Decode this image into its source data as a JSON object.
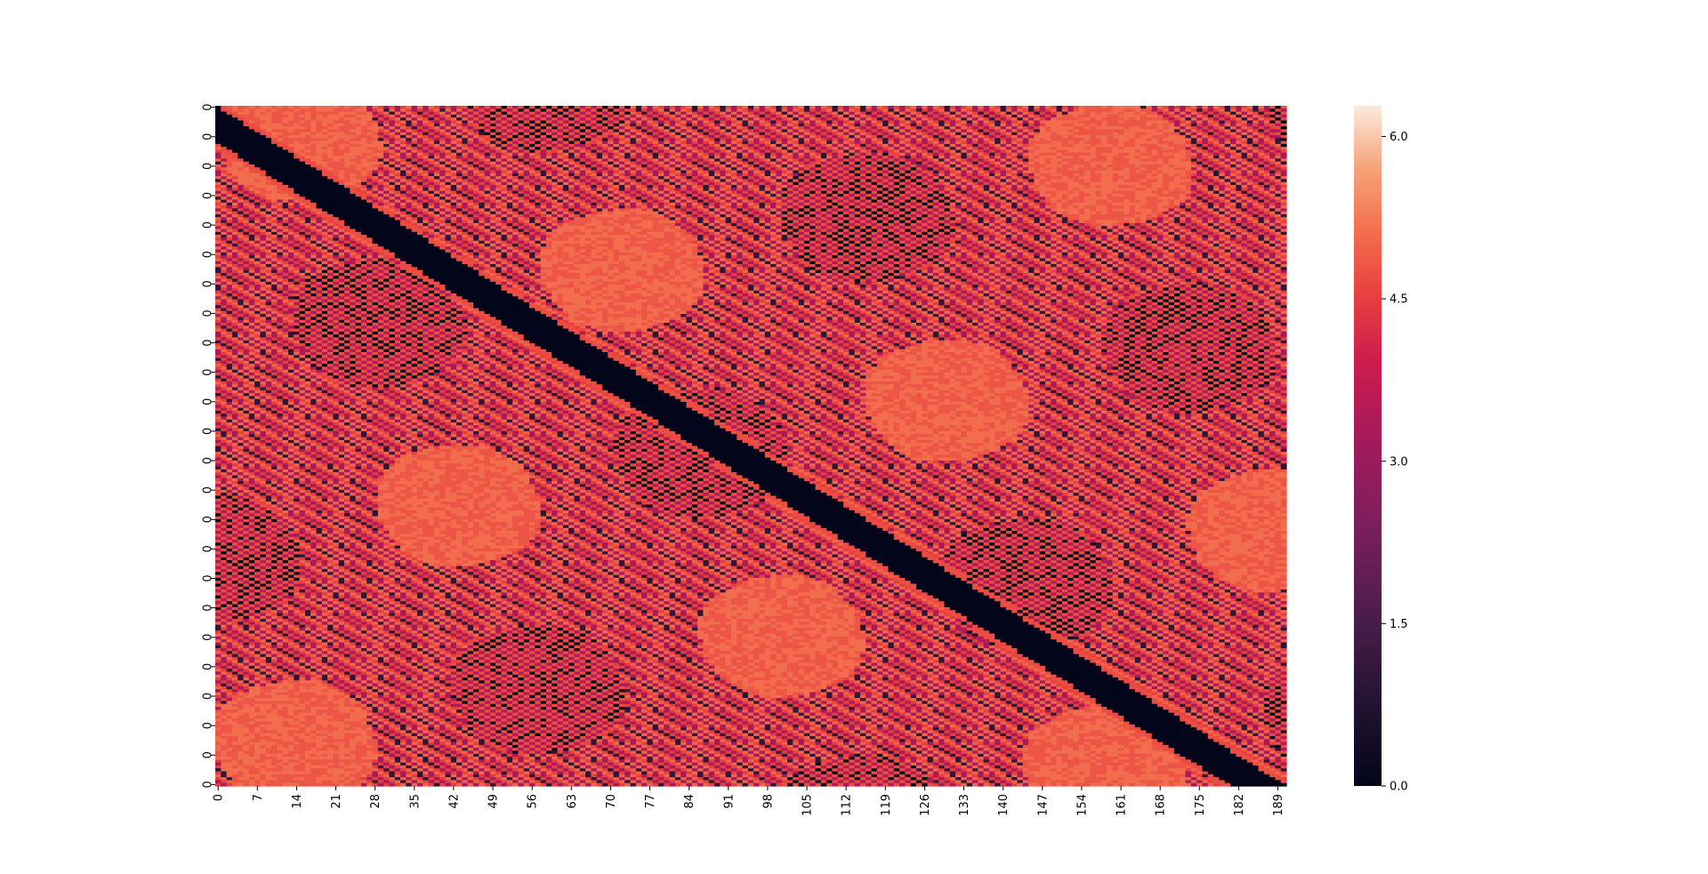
{
  "chart_data": {
    "type": "heatmap",
    "title": "",
    "xlabel": "",
    "ylabel": "",
    "n_cols": 191,
    "n_rows": 232,
    "x_tick_labels": [
      "0",
      "7",
      "14",
      "21",
      "28",
      "35",
      "42",
      "49",
      "56",
      "63",
      "70",
      "77",
      "84",
      "91",
      "98",
      "105",
      "112",
      "119",
      "126",
      "133",
      "140",
      "147",
      "154",
      "161",
      "168",
      "175",
      "182",
      "189"
    ],
    "y_tick_labels": [
      "0",
      "0",
      "0",
      "0",
      "0",
      "0",
      "0",
      "0",
      "0",
      "0",
      "0",
      "0",
      "0",
      "0",
      "0",
      "0",
      "0",
      "0",
      "0",
      "0",
      "0",
      "0",
      "0",
      "0"
    ],
    "value_range": [
      0.0,
      6.283
    ],
    "colormap": "rocket",
    "colorbar": {
      "ticks": [
        0.0,
        1.5,
        3.0,
        4.5,
        6.0
      ],
      "tick_labels": [
        "0.0",
        "1.5",
        "3.0",
        "4.5",
        "6.0"
      ]
    },
    "pattern": {
      "diagonal_band": "values near 0.0 along a dark band running from the top-left corner to the bottom-right corner",
      "background": "alternating high/low values forming diagonal stripes and checkerboard patches, mostly in the 3.0 to 5.0 range"
    }
  }
}
